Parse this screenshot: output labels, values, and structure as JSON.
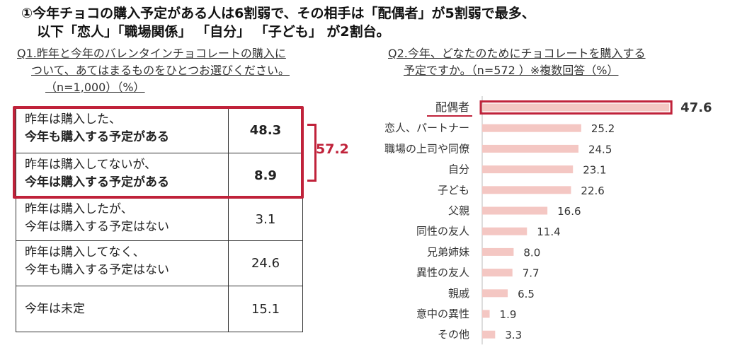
{
  "headline": {
    "line1": "①今年チョコの購入予定がある人は6割弱で、その相手は「配偶者」が5割弱で最多、",
    "line2": "以下「恋人」「職場関係」 「自分」 「子ども」 が2割台。"
  },
  "q1": {
    "title_line1": "Q1.昨年と今年のバレンタインチョコレートの購入に",
    "title_line2": "ついて、あてはまるものをひとつお選びください。",
    "title_line3": "（n=1,000）（%）",
    "rows": [
      {
        "line1": "昨年は購入した、",
        "line2": "今年も購入する予定がある",
        "value": "48.3"
      },
      {
        "line1": "昨年は購入してないが、",
        "line2": "今年は購入する予定がある",
        "value": "8.9"
      },
      {
        "line1": "昨年は購入したが、",
        "line2": "今年は購入する予定はない",
        "value": "3.1"
      },
      {
        "line1": "昨年は購入してなく、",
        "line2": "今年も購入する予定はない",
        "value": "24.6"
      },
      {
        "line1": "今年は未定",
        "line2": "",
        "value": "15.1"
      }
    ],
    "highlight_sum": "57.2",
    "accent_color": "#c0223a"
  },
  "q2": {
    "title_line1": "Q2.今年、どなたのためにチョコレートを購入する",
    "title_line2": "予定ですか。（n=572 ）※複数回答（%）"
  },
  "chart_data": {
    "type": "bar",
    "orientation": "horizontal",
    "categories": [
      "配偶者",
      "恋人、パートナー",
      "職場の上司や同僚",
      "自分",
      "子ども",
      "父親",
      "同性の友人",
      "兄弟姉妹",
      "異性の友人",
      "親戚",
      "意中の異性",
      "その他"
    ],
    "values": [
      47.6,
      25.2,
      24.5,
      23.1,
      22.6,
      16.6,
      11.4,
      8.0,
      7.7,
      6.5,
      1.9,
      3.3
    ],
    "value_labels": [
      "47.6",
      "25.2",
      "24.5",
      "23.1",
      "22.6",
      "16.6",
      "11.4",
      "8.0",
      "7.7",
      "6.5",
      "1.9",
      "3.3"
    ],
    "highlight_index": 0,
    "bar_color": "#f4c7c3",
    "highlight_border": "#c0223a",
    "grid": false,
    "legend": "none"
  }
}
